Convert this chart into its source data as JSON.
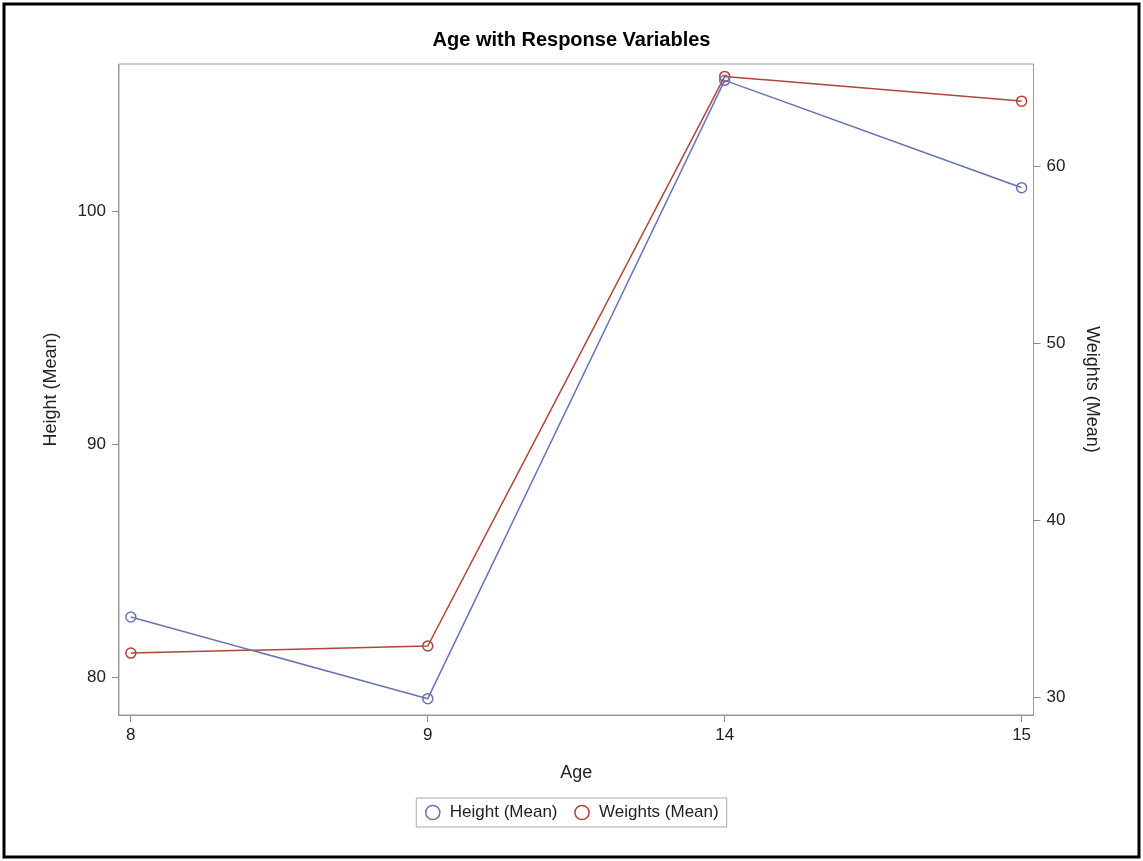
{
  "chart_data": {
    "type": "line",
    "title": "Age with Response Variables",
    "xlabel": "Age",
    "ylabel": "Height (Mean)",
    "y2label": "Weights (Mean)",
    "categories": [
      "8",
      "9",
      "14",
      "15"
    ],
    "series": [
      {
        "name": "Height (Mean)",
        "color": "#6675b4",
        "values": [
          82.6,
          79.1,
          105.6,
          101.0
        ]
      },
      {
        "name": "Weights (Mean)",
        "color": "#b0453a",
        "axis": "y2",
        "values": [
          32.5,
          32.9,
          65.1,
          63.7
        ]
      }
    ],
    "ylim": [
      78.4,
      106.3
    ],
    "yticks": [
      80,
      90,
      100
    ],
    "y2lim": [
      29,
      65.8
    ],
    "y2ticks": [
      30,
      40,
      50,
      60
    ],
    "marker": "circle",
    "line_style": "solid",
    "grid": false,
    "legend": "bottom"
  }
}
